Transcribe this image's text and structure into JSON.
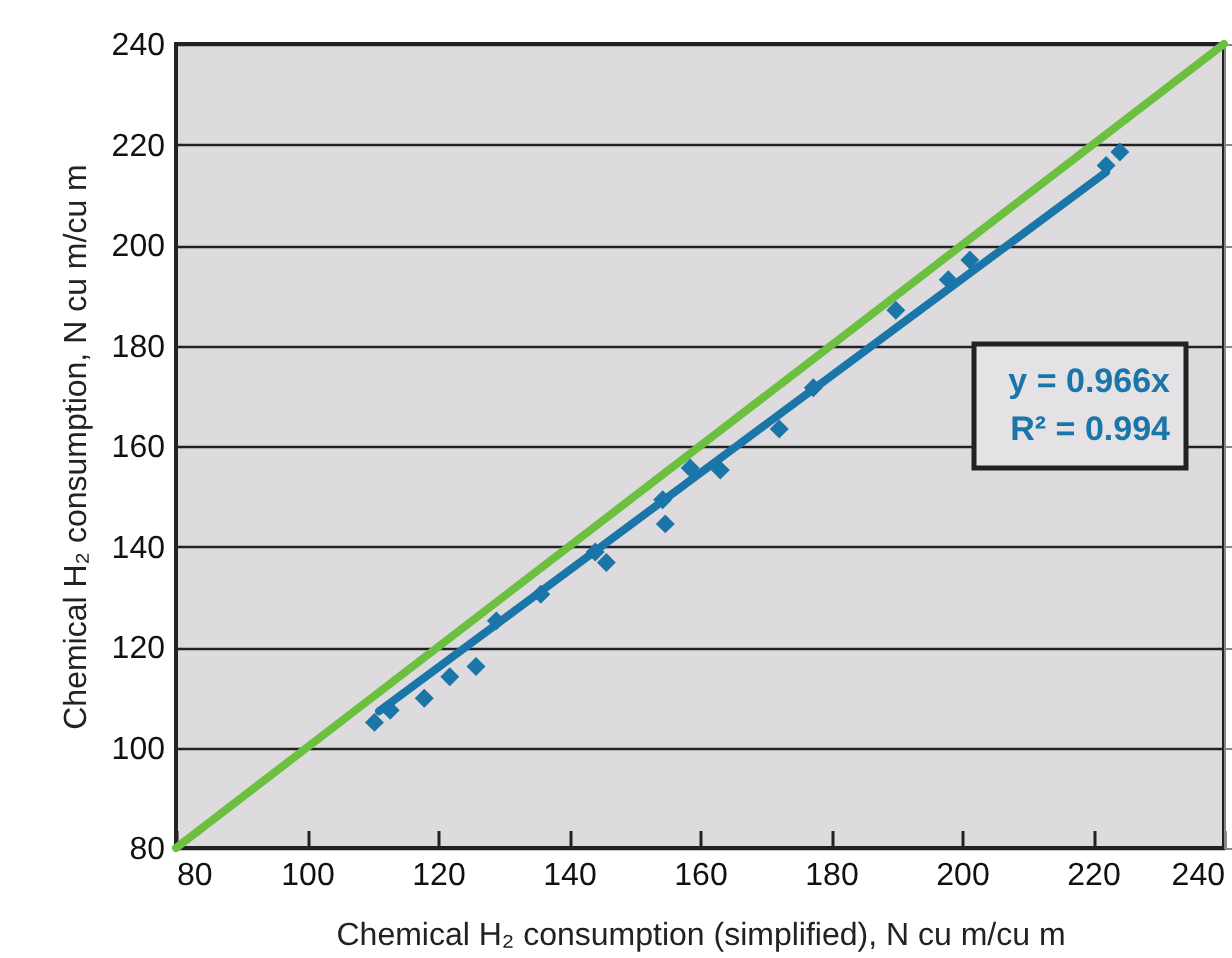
{
  "chart_data": {
    "type": "scatter",
    "xlabel": "Chemical H₂ consumption (simplified), N cu m/cu m",
    "ylabel": "Chemical H₂ consumption, N cu m/cu m",
    "xlim": [
      80,
      240
    ],
    "xticks": [
      80,
      100,
      120,
      140,
      160,
      180,
      200,
      220,
      240
    ],
    "ylim": [
      80,
      240
    ],
    "yticks": [
      80,
      100,
      120,
      140,
      160,
      180,
      200,
      220,
      240
    ],
    "grid": "y",
    "annotations": [
      "y = 0.966x",
      "R² = 0.994"
    ],
    "series": [
      {
        "type": "line",
        "color": "#6cbf3f",
        "x": [
          80,
          240
        ],
        "values": [
          80,
          240
        ]
      },
      {
        "type": "line",
        "color": "#1a75a8",
        "x": [
          111,
          222
        ],
        "values": [
          107.2,
          214.5
        ]
      },
      {
        "marker": "diamond",
        "color": "#1a75a8",
        "x": [
          110.3,
          112.7,
          117.9,
          121.8,
          125.8,
          128.9,
          135.7,
          144,
          145.7,
          154.3,
          154.7,
          158.5,
          163.1,
          172.1,
          177.3,
          189.9,
          197.9,
          201.2,
          222,
          224.1
        ],
        "values": [
          105,
          107.4,
          109.8,
          114.1,
          116.1,
          125.2,
          130.5,
          138.9,
          136.8,
          149.3,
          144.5,
          155.6,
          155.2,
          163.4,
          171.6,
          187,
          193.1,
          197,
          215.8,
          218.5
        ]
      }
    ]
  }
}
